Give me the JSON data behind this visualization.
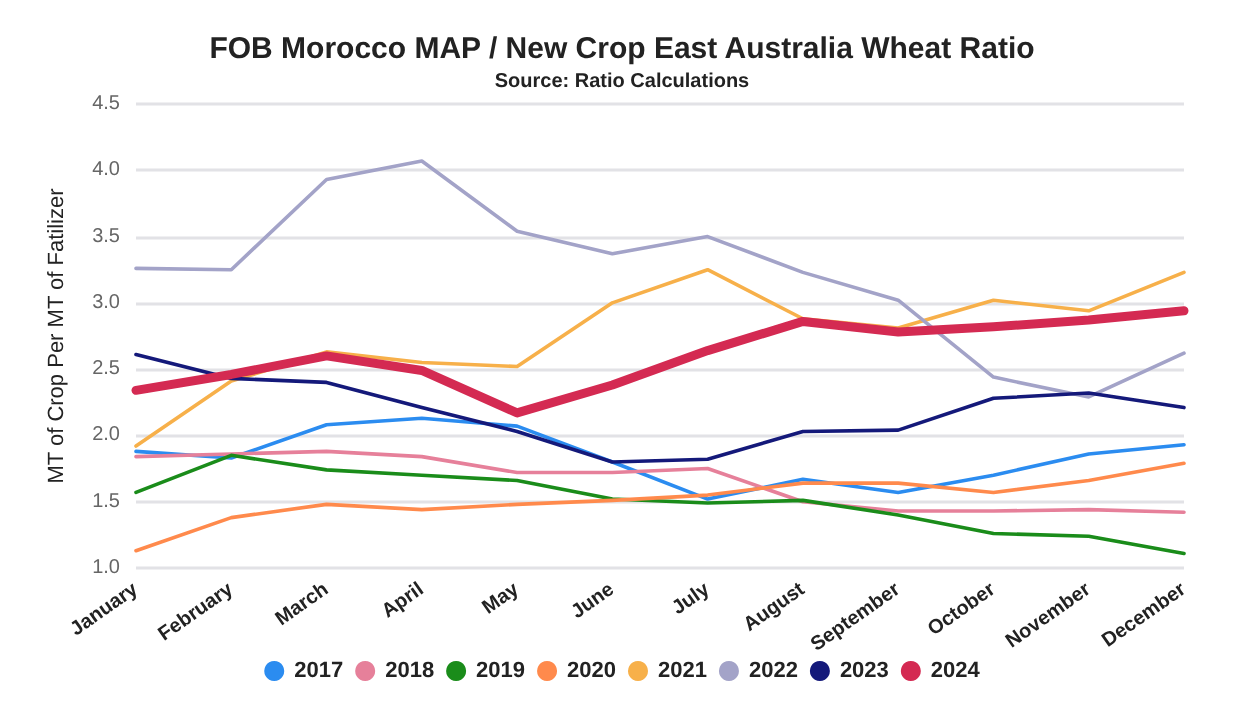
{
  "chart_data": {
    "type": "line",
    "title": "FOB Morocco MAP / New Crop East Australia Wheat Ratio",
    "subtitle": "Source: Ratio Calculations",
    "ylabel": "MT of Crop Per MT of Fatilizer",
    "categories": [
      "January",
      "February",
      "March",
      "April",
      "May",
      "June",
      "July",
      "August",
      "September",
      "October",
      "November",
      "December"
    ],
    "ylim": [
      1.0,
      4.5
    ],
    "yticks": [
      {
        "value": 1,
        "label": "1.0"
      },
      1.5,
      {
        "value": 2,
        "label": "2.0"
      },
      2.5,
      {
        "value": 3,
        "label": "3.0"
      },
      3.5,
      {
        "value": 4,
        "label": "4.0"
      },
      4.5
    ],
    "grid": "y",
    "legend": "bottom",
    "marker": "none",
    "line_style": "solid",
    "series": [
      {
        "name": "2017",
        "color": "#2b8cf0",
        "values": [
          1.88,
          1.83,
          2.08,
          2.13,
          2.07,
          1.8,
          1.52,
          1.67,
          1.57,
          1.7,
          1.86,
          1.93
        ]
      },
      {
        "name": "2018",
        "color": "#e6809a",
        "values": [
          1.84,
          1.86,
          1.88,
          1.84,
          1.72,
          1.72,
          1.75,
          1.5,
          1.43,
          1.43,
          1.44,
          1.42
        ]
      },
      {
        "name": "2019",
        "color": "#1a8c1a",
        "values": [
          1.57,
          1.85,
          1.74,
          1.7,
          1.66,
          1.52,
          1.49,
          1.51,
          1.4,
          1.26,
          1.24,
          1.11
        ]
      },
      {
        "name": "2020",
        "color": "#ff8a4c",
        "values": [
          1.13,
          1.38,
          1.48,
          1.44,
          1.48,
          1.51,
          1.55,
          1.64,
          1.64,
          1.57,
          1.66,
          1.79
        ]
      },
      {
        "name": "2021",
        "color": "#f7b04a",
        "values": [
          1.92,
          2.41,
          2.63,
          2.55,
          2.52,
          3.0,
          3.25,
          2.88,
          2.81,
          3.02,
          2.94,
          3.23
        ]
      },
      {
        "name": "2022",
        "color": "#a3a3c8",
        "values": [
          3.26,
          3.25,
          3.93,
          4.07,
          3.54,
          3.37,
          3.5,
          3.23,
          3.02,
          2.44,
          2.29,
          2.62
        ]
      },
      {
        "name": "2023",
        "color": "#14197a",
        "values": [
          2.61,
          2.43,
          2.4,
          2.21,
          2.03,
          1.8,
          1.82,
          2.03,
          2.04,
          2.28,
          2.32,
          2.21
        ]
      },
      {
        "name": "2024",
        "color": "#d42a52",
        "values": [
          2.34,
          2.46,
          2.6,
          2.49,
          2.17,
          2.38,
          2.64,
          2.86,
          2.78,
          2.82,
          2.87,
          2.94
        ]
      }
    ]
  }
}
